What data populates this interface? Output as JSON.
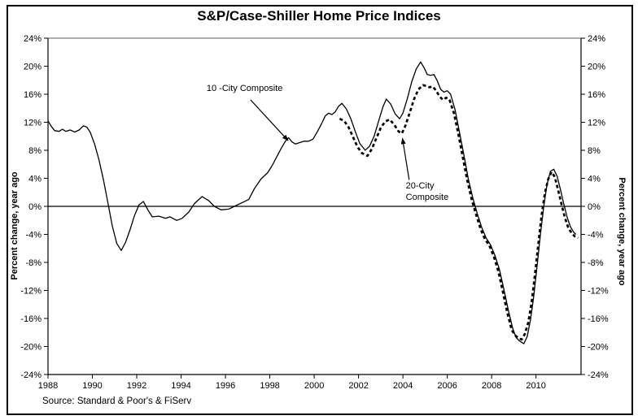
{
  "chart_data": {
    "type": "line",
    "title": "S&P/Case-Shiller Home Price Indices",
    "ylabel_left": "Percent change, year ago",
    "ylabel_right": "Percent change, year ago",
    "source_note": "Source: Standard & Poor's & FiServ",
    "xlim": [
      1988,
      2012.03
    ],
    "ylim": [
      -24,
      24
    ],
    "x_ticks": [
      1988,
      1990,
      1992,
      1994,
      1996,
      1998,
      2000,
      2002,
      2004,
      2006,
      2008,
      2010
    ],
    "y_ticks": [
      24,
      20,
      16,
      12,
      8,
      4,
      0,
      -4,
      -8,
      -12,
      -16,
      -20,
      -24
    ],
    "y_tick_suffix": "%",
    "grid": "none",
    "zero_line": true,
    "legend_position": "inline-annotations",
    "colors": {
      "line": "#000000",
      "top_border": "#808080",
      "background": "#ffffff"
    },
    "series": [
      {
        "name": "10-City Composite",
        "style": "solid",
        "color": "#000000",
        "points": [
          [
            1988.0,
            12.2
          ],
          [
            1988.15,
            11.4
          ],
          [
            1988.3,
            10.8
          ],
          [
            1988.5,
            10.7
          ],
          [
            1988.65,
            11.0
          ],
          [
            1988.8,
            10.7
          ],
          [
            1989.0,
            10.9
          ],
          [
            1989.2,
            10.6
          ],
          [
            1989.4,
            10.9
          ],
          [
            1989.6,
            11.5
          ],
          [
            1989.75,
            11.3
          ],
          [
            1989.9,
            10.6
          ],
          [
            1990.1,
            8.9
          ],
          [
            1990.3,
            6.6
          ],
          [
            1990.5,
            3.8
          ],
          [
            1990.7,
            0.5
          ],
          [
            1990.9,
            -2.8
          ],
          [
            1991.1,
            -5.3
          ],
          [
            1991.3,
            -6.3
          ],
          [
            1991.5,
            -5.1
          ],
          [
            1991.7,
            -3.3
          ],
          [
            1991.9,
            -1.3
          ],
          [
            1992.1,
            0.2
          ],
          [
            1992.3,
            0.7
          ],
          [
            1992.5,
            -0.5
          ],
          [
            1992.7,
            -1.5
          ],
          [
            1993.0,
            -1.4
          ],
          [
            1993.3,
            -1.7
          ],
          [
            1993.5,
            -1.5
          ],
          [
            1993.8,
            -2.0
          ],
          [
            1994.05,
            -1.7
          ],
          [
            1994.35,
            -0.8
          ],
          [
            1994.6,
            0.4
          ],
          [
            1994.95,
            1.4
          ],
          [
            1995.25,
            0.8
          ],
          [
            1995.5,
            0.0
          ],
          [
            1995.8,
            -0.5
          ],
          [
            1996.15,
            -0.4
          ],
          [
            1996.4,
            0.0
          ],
          [
            1996.8,
            0.6
          ],
          [
            1997.05,
            1.0
          ],
          [
            1997.3,
            2.5
          ],
          [
            1997.6,
            3.9
          ],
          [
            1997.9,
            4.8
          ],
          [
            1998.1,
            5.8
          ],
          [
            1998.3,
            7.0
          ],
          [
            1998.5,
            8.2
          ],
          [
            1998.7,
            9.3
          ],
          [
            1998.85,
            9.8
          ],
          [
            1999.0,
            9.2
          ],
          [
            1999.15,
            8.9
          ],
          [
            1999.35,
            9.1
          ],
          [
            1999.55,
            9.3
          ],
          [
            1999.75,
            9.3
          ],
          [
            1999.95,
            9.6
          ],
          [
            2000.15,
            10.7
          ],
          [
            2000.35,
            11.9
          ],
          [
            2000.5,
            12.9
          ],
          [
            2000.65,
            13.3
          ],
          [
            2000.8,
            13.1
          ],
          [
            2000.95,
            13.5
          ],
          [
            2001.1,
            14.3
          ],
          [
            2001.25,
            14.7
          ],
          [
            2001.45,
            13.9
          ],
          [
            2001.65,
            12.5
          ],
          [
            2001.85,
            10.7
          ],
          [
            2002.05,
            9.0
          ],
          [
            2002.3,
            8.0
          ],
          [
            2002.5,
            8.6
          ],
          [
            2002.7,
            10.0
          ],
          [
            2002.9,
            12.1
          ],
          [
            2003.1,
            14.2
          ],
          [
            2003.25,
            15.3
          ],
          [
            2003.45,
            14.6
          ],
          [
            2003.65,
            13.2
          ],
          [
            2003.85,
            12.5
          ],
          [
            2004.0,
            13.3
          ],
          [
            2004.2,
            15.4
          ],
          [
            2004.4,
            17.8
          ],
          [
            2004.6,
            19.6
          ],
          [
            2004.8,
            20.6
          ],
          [
            2004.95,
            19.8
          ],
          [
            2005.1,
            18.8
          ],
          [
            2005.25,
            18.7
          ],
          [
            2005.4,
            18.8
          ],
          [
            2005.55,
            17.9
          ],
          [
            2005.7,
            16.7
          ],
          [
            2005.85,
            16.3
          ],
          [
            2006.0,
            16.5
          ],
          [
            2006.15,
            16.0
          ],
          [
            2006.35,
            13.8
          ],
          [
            2006.55,
            10.6
          ],
          [
            2006.75,
            7.3
          ],
          [
            2006.95,
            3.9
          ],
          [
            2007.15,
            1.2
          ],
          [
            2007.35,
            -1.0
          ],
          [
            2007.55,
            -3.0
          ],
          [
            2007.75,
            -4.5
          ],
          [
            2007.95,
            -5.5
          ],
          [
            2008.15,
            -7.0
          ],
          [
            2008.35,
            -9.0
          ],
          [
            2008.55,
            -11.8
          ],
          [
            2008.75,
            -14.8
          ],
          [
            2008.95,
            -17.4
          ],
          [
            2009.1,
            -18.7
          ],
          [
            2009.25,
            -19.2
          ],
          [
            2009.45,
            -19.6
          ],
          [
            2009.6,
            -18.6
          ],
          [
            2009.75,
            -16.2
          ],
          [
            2009.9,
            -12.8
          ],
          [
            2010.05,
            -8.5
          ],
          [
            2010.2,
            -4.0
          ],
          [
            2010.35,
            0.0
          ],
          [
            2010.5,
            3.2
          ],
          [
            2010.65,
            5.0
          ],
          [
            2010.8,
            5.3
          ],
          [
            2010.95,
            4.3
          ],
          [
            2011.1,
            2.4
          ],
          [
            2011.25,
            0.4
          ],
          [
            2011.4,
            -1.5
          ],
          [
            2011.55,
            -2.9
          ],
          [
            2011.7,
            -3.7
          ],
          [
            2011.8,
            -4.0
          ]
        ]
      },
      {
        "name": "20-City Composite",
        "style": "dashed",
        "color": "#000000",
        "points": [
          [
            2001.15,
            12.5
          ],
          [
            2001.35,
            12.2
          ],
          [
            2001.55,
            11.3
          ],
          [
            2001.75,
            9.9
          ],
          [
            2001.95,
            8.5
          ],
          [
            2002.15,
            7.6
          ],
          [
            2002.4,
            7.2
          ],
          [
            2002.6,
            8.2
          ],
          [
            2002.8,
            9.7
          ],
          [
            2003.0,
            11.2
          ],
          [
            2003.2,
            12.1
          ],
          [
            2003.4,
            12.4
          ],
          [
            2003.6,
            11.7
          ],
          [
            2003.8,
            10.7
          ],
          [
            2003.95,
            10.4
          ],
          [
            2004.1,
            11.4
          ],
          [
            2004.3,
            13.3
          ],
          [
            2004.5,
            15.3
          ],
          [
            2004.7,
            16.7
          ],
          [
            2004.9,
            17.3
          ],
          [
            2005.05,
            17.2
          ],
          [
            2005.2,
            17.0
          ],
          [
            2005.35,
            17.1
          ],
          [
            2005.5,
            16.5
          ],
          [
            2005.65,
            15.7
          ],
          [
            2005.8,
            15.2
          ],
          [
            2005.95,
            15.5
          ],
          [
            2006.1,
            15.2
          ],
          [
            2006.3,
            13.3
          ],
          [
            2006.5,
            10.3
          ],
          [
            2006.7,
            7.0
          ],
          [
            2006.9,
            3.7
          ],
          [
            2007.1,
            1.0
          ],
          [
            2007.3,
            -1.2
          ],
          [
            2007.5,
            -3.2
          ],
          [
            2007.7,
            -4.7
          ],
          [
            2007.9,
            -5.6
          ],
          [
            2008.1,
            -7.2
          ],
          [
            2008.3,
            -9.2
          ],
          [
            2008.5,
            -12.1
          ],
          [
            2008.7,
            -15.1
          ],
          [
            2008.9,
            -17.6
          ],
          [
            2009.05,
            -18.4
          ],
          [
            2009.2,
            -18.8
          ],
          [
            2009.35,
            -19.0
          ],
          [
            2009.5,
            -18.2
          ],
          [
            2009.65,
            -16.6
          ],
          [
            2009.8,
            -13.8
          ],
          [
            2009.95,
            -9.8
          ],
          [
            2010.1,
            -5.5
          ],
          [
            2010.25,
            -1.3
          ],
          [
            2010.4,
            1.9
          ],
          [
            2010.55,
            3.9
          ],
          [
            2010.7,
            4.9
          ],
          [
            2010.85,
            4.2
          ],
          [
            2011.0,
            2.3
          ],
          [
            2011.15,
            0.3
          ],
          [
            2011.3,
            -1.6
          ],
          [
            2011.45,
            -3.0
          ],
          [
            2011.6,
            -3.8
          ],
          [
            2011.75,
            -4.3
          ],
          [
            2011.9,
            -4.5
          ]
        ]
      }
    ],
    "annotations": [
      {
        "name": "10-city-composite-label",
        "lines": [
          "10 -City Composite"
        ],
        "text_anchor": {
          "year": 1995.15,
          "value": 17.6
        },
        "arrow": {
          "from": {
            "year": 1997.13,
            "value": 15.2
          },
          "to": {
            "year": 1998.82,
            "value": 9.4
          }
        }
      },
      {
        "name": "20-city-composite-label",
        "lines": [
          "20-City",
          "Composite"
        ],
        "text_anchor": {
          "year": 2004.13,
          "value": 3.7
        },
        "arrow": {
          "from": {
            "year": 2004.28,
            "value": 3.8
          },
          "to": {
            "year": 2003.98,
            "value": 9.7
          }
        }
      }
    ]
  }
}
